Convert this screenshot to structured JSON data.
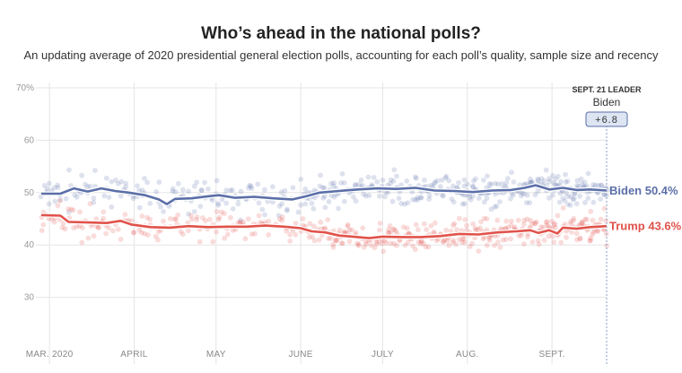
{
  "title": "Who’s ahead in the national polls?",
  "subtitle": "An updating average of 2020 presidential general election polls, accounting for each poll’s quality, sample size and recency",
  "leader": {
    "heading": "SEPT. 21 LEADER",
    "name": "Biden",
    "margin": "+6.8"
  },
  "colors": {
    "biden": "#5b6fa8",
    "trump": "#e0524a",
    "grid": "#e5e5e5"
  },
  "chart_data": {
    "type": "line",
    "title": "Who’s ahead in the national polls?",
    "subtitle": "An updating average of 2020 presidential general election polls, accounting for each poll’s quality, sample size and recency",
    "ylim": [
      20,
      70
    ],
    "y_ticks": [
      {
        "value": 70,
        "label": "70%"
      },
      {
        "value": 60,
        "label": "60"
      },
      {
        "value": 50,
        "label": "50"
      },
      {
        "value": 40,
        "label": "40"
      },
      {
        "value": 30,
        "label": "30"
      }
    ],
    "xlim": [
      "2020-02-27",
      "2020-09-21"
    ],
    "x_ticks": [
      {
        "date": "2020-03-01",
        "label": "MAR. 2020"
      },
      {
        "date": "2020-04-01",
        "label": "APRIL"
      },
      {
        "date": "2020-05-01",
        "label": "MAY"
      },
      {
        "date": "2020-06-01",
        "label": "JUNE"
      },
      {
        "date": "2020-07-01",
        "label": "JULY"
      },
      {
        "date": "2020-08-01",
        "label": "AUG."
      },
      {
        "date": "2020-09-01",
        "label": "SEPT."
      }
    ],
    "grid": true,
    "series": [
      {
        "name": "Biden",
        "end_label": "Biden 50.4%",
        "color": "#5b6fa8",
        "points": [
          [
            "2020-02-27",
            49.8
          ],
          [
            "2020-03-05",
            49.8
          ],
          [
            "2020-03-10",
            50.8
          ],
          [
            "2020-03-15",
            50.2
          ],
          [
            "2020-03-20",
            50.8
          ],
          [
            "2020-03-25",
            50.3
          ],
          [
            "2020-03-30",
            50.0
          ],
          [
            "2020-04-05",
            49.5
          ],
          [
            "2020-04-10",
            48.7
          ],
          [
            "2020-04-13",
            47.8
          ],
          [
            "2020-04-16",
            48.8
          ],
          [
            "2020-04-22",
            48.9
          ],
          [
            "2020-04-28",
            49.3
          ],
          [
            "2020-05-02",
            49.5
          ],
          [
            "2020-05-08",
            49.0
          ],
          [
            "2020-05-15",
            49.2
          ],
          [
            "2020-05-22",
            48.9
          ],
          [
            "2020-05-29",
            48.7
          ],
          [
            "2020-06-03",
            49.3
          ],
          [
            "2020-06-08",
            50.0
          ],
          [
            "2020-06-15",
            50.3
          ],
          [
            "2020-06-22",
            50.6
          ],
          [
            "2020-06-29",
            50.8
          ],
          [
            "2020-07-06",
            50.7
          ],
          [
            "2020-07-13",
            50.9
          ],
          [
            "2020-07-20",
            50.4
          ],
          [
            "2020-07-27",
            50.3
          ],
          [
            "2020-08-03",
            50.1
          ],
          [
            "2020-08-10",
            50.4
          ],
          [
            "2020-08-17",
            50.5
          ],
          [
            "2020-08-22",
            50.9
          ],
          [
            "2020-08-26",
            51.4
          ],
          [
            "2020-08-31",
            50.6
          ],
          [
            "2020-09-05",
            50.9
          ],
          [
            "2020-09-10",
            50.5
          ],
          [
            "2020-09-15",
            50.6
          ],
          [
            "2020-09-21",
            50.4
          ]
        ]
      },
      {
        "name": "Trump",
        "end_label": "Trump 43.6%",
        "color": "#e0524a",
        "points": [
          [
            "2020-02-27",
            45.7
          ],
          [
            "2020-03-05",
            45.6
          ],
          [
            "2020-03-08",
            44.4
          ],
          [
            "2020-03-15",
            44.3
          ],
          [
            "2020-03-22",
            44.2
          ],
          [
            "2020-03-27",
            44.6
          ],
          [
            "2020-03-31",
            43.9
          ],
          [
            "2020-04-07",
            43.4
          ],
          [
            "2020-04-14",
            43.3
          ],
          [
            "2020-04-21",
            43.6
          ],
          [
            "2020-04-28",
            43.4
          ],
          [
            "2020-05-05",
            43.5
          ],
          [
            "2020-05-12",
            43.5
          ],
          [
            "2020-05-19",
            43.7
          ],
          [
            "2020-05-26",
            43.5
          ],
          [
            "2020-06-01",
            43.2
          ],
          [
            "2020-06-05",
            42.6
          ],
          [
            "2020-06-10",
            42.4
          ],
          [
            "2020-06-15",
            41.8
          ],
          [
            "2020-06-20",
            41.6
          ],
          [
            "2020-06-26",
            41.3
          ],
          [
            "2020-07-01",
            41.6
          ],
          [
            "2020-07-08",
            41.5
          ],
          [
            "2020-07-15",
            41.5
          ],
          [
            "2020-07-22",
            41.7
          ],
          [
            "2020-07-29",
            42.1
          ],
          [
            "2020-08-05",
            42.0
          ],
          [
            "2020-08-12",
            42.4
          ],
          [
            "2020-08-19",
            42.6
          ],
          [
            "2020-08-24",
            42.8
          ],
          [
            "2020-08-27",
            42.3
          ],
          [
            "2020-08-31",
            42.8
          ],
          [
            "2020-09-03",
            42.2
          ],
          [
            "2020-09-05",
            43.3
          ],
          [
            "2020-09-10",
            43.1
          ],
          [
            "2020-09-15",
            43.4
          ],
          [
            "2020-09-21",
            43.6
          ]
        ]
      }
    ]
  }
}
